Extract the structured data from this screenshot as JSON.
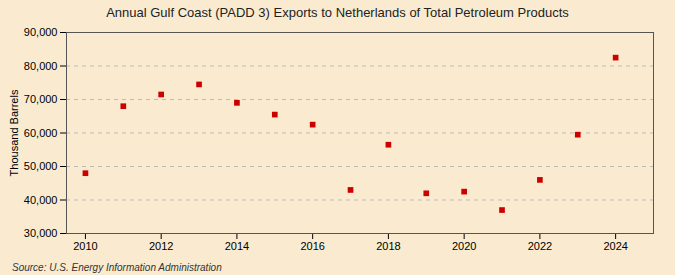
{
  "chart_data": {
    "type": "scatter",
    "title": "Annual Gulf Coast (PADD 3) Exports to Netherlands of Total Petroleum Products",
    "ylabel": "Thousand Barrels",
    "annotations": [
      "Source: U.S. Energy Information Administration"
    ],
    "x": [
      2010,
      2011,
      2012,
      2013,
      2014,
      2015,
      2016,
      2017,
      2018,
      2019,
      2020,
      2021,
      2022,
      2023,
      2024
    ],
    "values": [
      48000,
      68000,
      71500,
      74500,
      69000,
      65500,
      62500,
      43000,
      56500,
      42000,
      42500,
      37000,
      46000,
      59500,
      82500
    ],
    "color": "#cc0000",
    "marker": "square",
    "xlim": [
      2009.5,
      2025.0
    ],
    "xticks": [
      2010,
      2012,
      2014,
      2016,
      2018,
      2020,
      2022,
      2024
    ],
    "ylim": [
      30000,
      90000
    ],
    "yticks": [
      {
        "value": 30000,
        "label": "30,000"
      },
      {
        "value": 40000,
        "label": "40,000"
      },
      {
        "value": 50000,
        "label": "50,000"
      },
      {
        "value": 60000,
        "label": "60,000"
      },
      {
        "value": 70000,
        "label": "70,000"
      },
      {
        "value": 80000,
        "label": "80,000"
      },
      {
        "value": 90000,
        "label": "90,000"
      }
    ],
    "grid": true
  }
}
